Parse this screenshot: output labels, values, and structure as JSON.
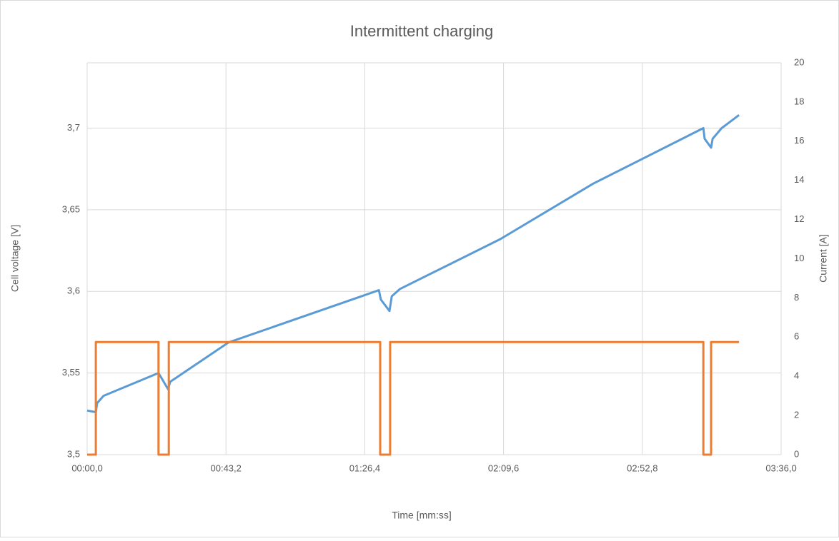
{
  "chart_data": {
    "type": "line",
    "title": "Intermittent charging",
    "x_label": "Time [mm:ss]",
    "y_label": "Cell voltage [V]",
    "y2_label": "Current [A]",
    "xlim": [
      0,
      216
    ],
    "xticks": [
      {
        "value": 0,
        "label": "00:00,0"
      },
      {
        "value": 43.2,
        "label": "00:43,2"
      },
      {
        "value": 86.4,
        "label": "01:26,4"
      },
      {
        "value": 129.6,
        "label": "02:09,6"
      },
      {
        "value": 172.8,
        "label": "02:52,8"
      },
      {
        "value": 216,
        "label": "03:36,0"
      }
    ],
    "ylim": [
      3.5,
      3.74
    ],
    "yticks": [
      {
        "value": 3.5,
        "label": "3,5"
      },
      {
        "value": 3.55,
        "label": "3,55"
      },
      {
        "value": 3.6,
        "label": "3,6"
      },
      {
        "value": 3.65,
        "label": "3,65"
      },
      {
        "value": 3.7,
        "label": "3,7"
      }
    ],
    "y2lim": [
      0,
      20
    ],
    "y2ticks": [
      0,
      2,
      4,
      6,
      8,
      10,
      12,
      14,
      16,
      18,
      20
    ],
    "grid": true,
    "series": [
      {
        "color": "#5b9bd5",
        "x": [
          0,
          2.7,
          3.1,
          5.1,
          22.2,
          25.2,
          25.8,
          44,
          90.8,
          91.4,
          94.1,
          94.8,
          97.4,
          128.6,
          157.5,
          191.8,
          192.2,
          194.2,
          194.7,
          197.5,
          202.9
        ],
        "values": [
          3.527,
          3.526,
          3.5315,
          3.536,
          3.55,
          3.54,
          3.5446,
          3.5687,
          3.6007,
          3.595,
          3.588,
          3.597,
          3.6015,
          3.632,
          3.666,
          3.7,
          3.6935,
          3.688,
          3.6935,
          3.7,
          3.708
        ]
      },
      {
        "color": "#ed7d31",
        "axis": "y2",
        "x": [
          0,
          2.7,
          2.7,
          22.2,
          22.2,
          25.4,
          25.4,
          91.2,
          91.2,
          94.3,
          94.3,
          191.8,
          191.8,
          194.2,
          194.2,
          202.9
        ],
        "values": [
          0,
          0,
          5.75,
          5.75,
          0,
          0,
          5.75,
          5.75,
          0,
          0,
          5.75,
          5.75,
          0,
          0,
          5.75,
          5.75
        ]
      }
    ]
  }
}
